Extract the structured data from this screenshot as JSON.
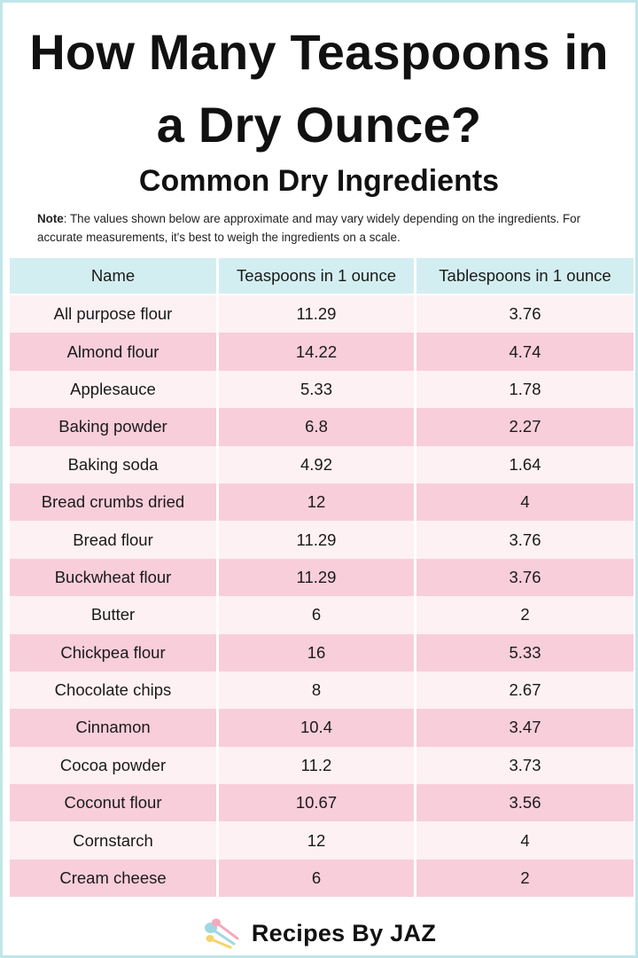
{
  "header": {
    "title_line1": "How Many Teaspoons in",
    "title_line2": "a Dry Ounce?",
    "subtitle": "Common Dry Ingredients",
    "note_label": "Note",
    "note_text": ": The values shown below are approximate and may vary widely depending on the ingredients. For accurate measurements, it's best to weigh the ingredients on a scale."
  },
  "table": {
    "columns": [
      "Name",
      "Teaspoons in 1 ounce",
      "Tablespoons in 1 ounce"
    ],
    "rows": [
      [
        "All purpose flour",
        "11.29",
        "3.76"
      ],
      [
        "Almond flour",
        "14.22",
        "4.74"
      ],
      [
        "Applesauce",
        "5.33",
        "1.78"
      ],
      [
        "Baking powder",
        "6.8",
        "2.27"
      ],
      [
        "Baking soda",
        "4.92",
        "1.64"
      ],
      [
        "Bread crumbs dried",
        "12",
        "4"
      ],
      [
        "Bread flour",
        "11.29",
        "3.76"
      ],
      [
        "Buckwheat flour",
        "11.29",
        "3.76"
      ],
      [
        "Butter",
        "6",
        "2"
      ],
      [
        "Chickpea flour",
        "16",
        "5.33"
      ],
      [
        "Chocolate chips",
        "8",
        "2.67"
      ],
      [
        "Cinnamon",
        "10.4",
        "3.47"
      ],
      [
        "Cocoa powder",
        "11.2",
        "3.73"
      ],
      [
        "Coconut flour",
        "10.67",
        "3.56"
      ],
      [
        "Cornstarch",
        "12",
        "4"
      ],
      [
        "Cream cheese",
        "6",
        "2"
      ]
    ]
  },
  "footer": {
    "brand": "Recipes By JAZ",
    "logo_icon": "measuring-spoons-icon"
  },
  "colors": {
    "header_bg": "#d3eef1",
    "row_light": "#fdf1f3",
    "row_pink": "#f8cedb",
    "border": "#bfe6ea"
  }
}
